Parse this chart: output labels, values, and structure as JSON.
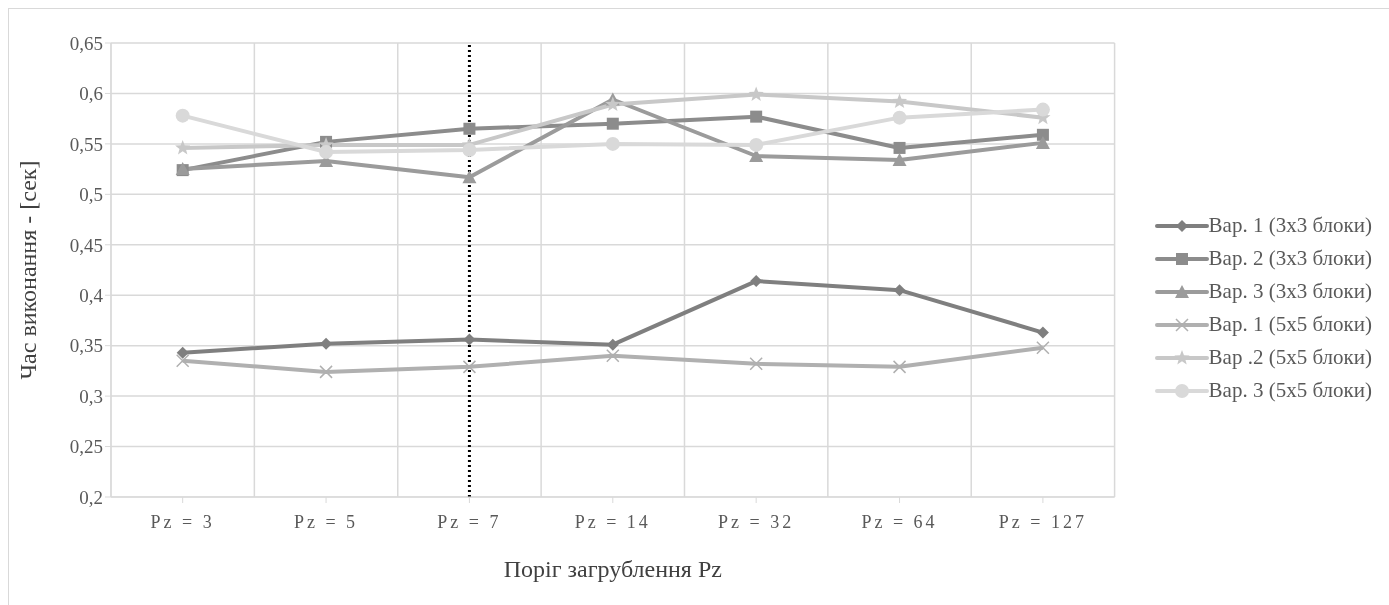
{
  "chart_data": {
    "type": "line",
    "xlabel": "Поріг загрублення Pz",
    "ylabel": "Час виконання - [сек]",
    "categories": [
      "Pz = 3",
      "Pz = 5",
      "Pz = 7",
      "Pz = 14",
      "Pz = 32",
      "Pz = 64",
      "Pz = 127"
    ],
    "series": [
      {
        "name": "Вар. 1 (3x3 блоки)",
        "color": "#7f7f7f",
        "marker": "diamond",
        "values": [
          0.343,
          0.352,
          0.356,
          0.351,
          0.414,
          0.405,
          0.363
        ]
      },
      {
        "name": "Вар. 2 (3x3 блоки)",
        "color": "#8c8c8c",
        "marker": "square",
        "values": [
          0.524,
          0.552,
          0.565,
          0.57,
          0.577,
          0.546,
          0.559
        ]
      },
      {
        "name": "Вар. 3 (3x3 блоки)",
        "color": "#9b9b9b",
        "marker": "triangle",
        "values": [
          0.525,
          0.533,
          0.517,
          0.594,
          0.538,
          0.534,
          0.551
        ]
      },
      {
        "name": "Вар. 1 (5x5 блоки)",
        "color": "#b0b0b0",
        "marker": "cross",
        "values": [
          0.335,
          0.324,
          0.329,
          0.34,
          0.332,
          0.329,
          0.348
        ]
      },
      {
        "name": "Вар .2 (5x5 блоки)",
        "color": "#c8c8c8",
        "marker": "star",
        "values": [
          0.546,
          0.549,
          0.549,
          0.589,
          0.599,
          0.592,
          0.576
        ]
      },
      {
        "name": "Вар. 3 (5x5 блоки)",
        "color": "#d9d9d9",
        "marker": "circle",
        "values": [
          0.578,
          0.542,
          0.544,
          0.55,
          0.549,
          0.576,
          0.584
        ]
      }
    ],
    "ylim": [
      0.2,
      0.65
    ],
    "yticks": [
      {
        "value": 0.2,
        "label": "0,2"
      },
      {
        "value": 0.25,
        "label": "0,25"
      },
      {
        "value": 0.3,
        "label": "0,3"
      },
      {
        "value": 0.35,
        "label": "0,35"
      },
      {
        "value": 0.4,
        "label": "0,4"
      },
      {
        "value": 0.45,
        "label": "0,45"
      },
      {
        "value": 0.5,
        "label": "0,5"
      },
      {
        "value": 0.55,
        "label": "0,55"
      },
      {
        "value": 0.6,
        "label": "0,6"
      },
      {
        "value": 0.65,
        "label": "0,65"
      }
    ],
    "ref_lines": [
      {
        "axis": "x",
        "value": "Pz = 7",
        "color": "#000000",
        "line_style": "dotted"
      }
    ],
    "grid": true,
    "legend": "right",
    "line_style": "solid"
  }
}
